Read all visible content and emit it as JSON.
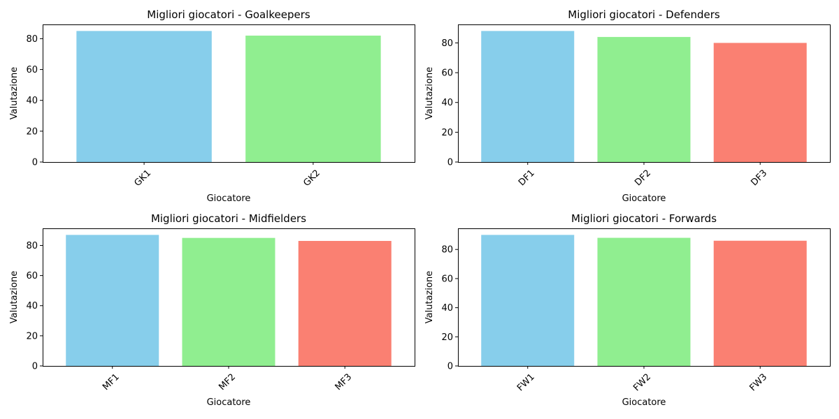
{
  "chart_data": [
    {
      "type": "bar",
      "title": "Migliori giocatori - Goalkeepers",
      "xlabel": "Giocatore",
      "ylabel": "Valutazione",
      "categories": [
        "GK1",
        "GK2"
      ],
      "values": [
        85,
        82
      ],
      "colors": [
        "#87ceeb",
        "#90ee90"
      ],
      "ylim": [
        0,
        89.25
      ],
      "yticks": [
        0,
        20,
        40,
        60,
        80
      ],
      "grid": false,
      "legend": "none"
    },
    {
      "type": "bar",
      "title": "Migliori giocatori - Defenders",
      "xlabel": "Giocatore",
      "ylabel": "Valutazione",
      "categories": [
        "DF1",
        "DF2",
        "DF3"
      ],
      "values": [
        88,
        84,
        80
      ],
      "colors": [
        "#87ceeb",
        "#90ee90",
        "#fa8072"
      ],
      "ylim": [
        0,
        92.4
      ],
      "yticks": [
        0,
        20,
        40,
        60,
        80
      ],
      "grid": false,
      "legend": "none"
    },
    {
      "type": "bar",
      "title": "Migliori giocatori - Midfielders",
      "xlabel": "Giocatore",
      "ylabel": "Valutazione",
      "categories": [
        "MF1",
        "MF2",
        "MF3"
      ],
      "values": [
        87,
        85,
        83
      ],
      "colors": [
        "#87ceeb",
        "#90ee90",
        "#fa8072"
      ],
      "ylim": [
        0,
        91.35
      ],
      "yticks": [
        0,
        20,
        40,
        60,
        80
      ],
      "grid": false,
      "legend": "none"
    },
    {
      "type": "bar",
      "title": "Migliori giocatori - Forwards",
      "xlabel": "Giocatore",
      "ylabel": "Valutazione",
      "categories": [
        "FW1",
        "FW2",
        "FW3"
      ],
      "values": [
        90,
        88,
        86
      ],
      "colors": [
        "#87ceeb",
        "#90ee90",
        "#fa8072"
      ],
      "ylim": [
        0,
        94.5
      ],
      "yticks": [
        0,
        20,
        40,
        60,
        80
      ],
      "grid": false,
      "legend": "none"
    }
  ]
}
